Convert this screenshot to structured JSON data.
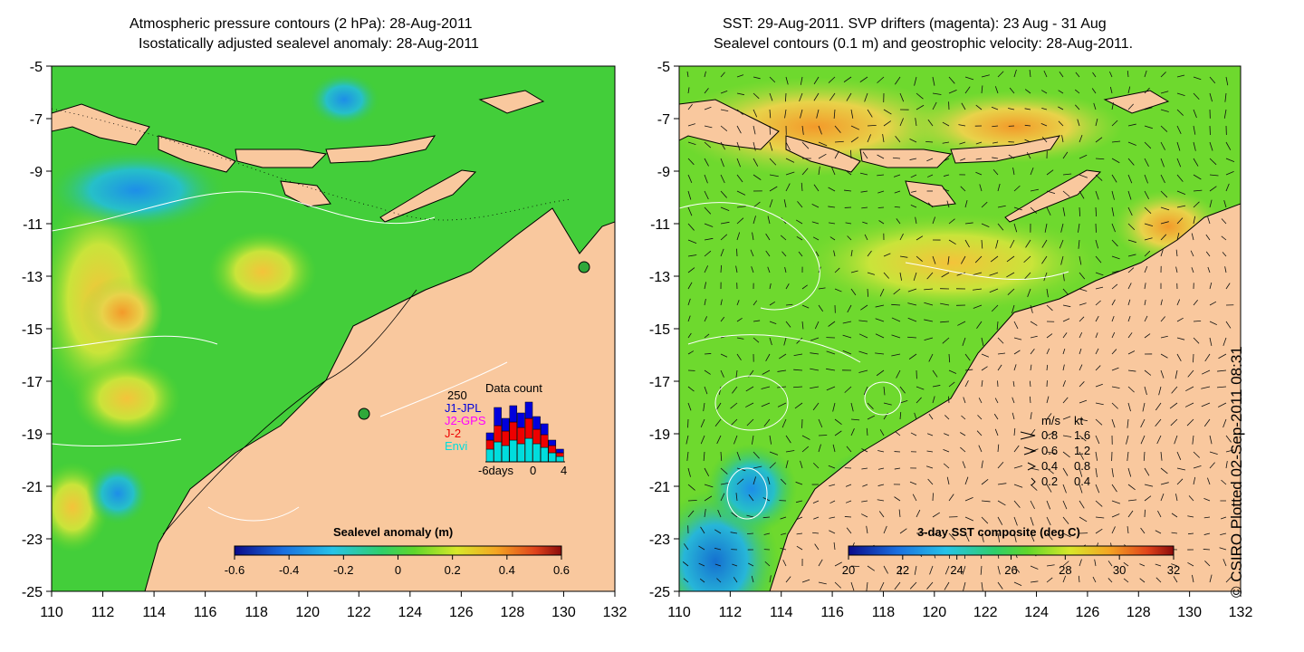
{
  "left": {
    "title_line1": "Atmospheric pressure contours (2 hPa): 28-Aug-2011",
    "title_line2": "Isostatically adjusted sealevel anomaly: 28-Aug-2011",
    "colorbar": {
      "title": "Sealevel anomaly (m)",
      "ticks": [
        "-0.6",
        "-0.4",
        "-0.2",
        "0",
        "0.2",
        "0.4",
        "0.6"
      ]
    },
    "data_count": {
      "title": "Data count",
      "max_label": "250",
      "series": [
        {
          "name": "J1-JPL",
          "color": "#0000dd"
        },
        {
          "name": "J2-GPS",
          "color": "#ff00ff"
        },
        {
          "name": "J-2",
          "color": "#ee0000"
        },
        {
          "name": "Envi",
          "color": "#00dddd"
        }
      ],
      "x_labels": [
        "-6days",
        "0",
        "4"
      ]
    }
  },
  "right": {
    "title_line1": "SST: 29-Aug-2011. SVP drifters (magenta): 23 Aug - 31 Aug",
    "title_line2": "Sealevel contours (0.1 m) and geostrophic velocity: 28-Aug-2011.",
    "colorbar": {
      "title": "3-day SST composite (deg C)",
      "ticks": [
        "20",
        "22",
        "24",
        "26",
        "28",
        "30",
        "32"
      ]
    },
    "speed_legend": {
      "header_ms": "m/s",
      "header_kt": "kt",
      "rows": [
        {
          "ms": "0.8",
          "kt": "1.6"
        },
        {
          "ms": "0.6",
          "kt": "1.2"
        },
        {
          "ms": "0.4",
          "kt": "0.8"
        },
        {
          "ms": "0.2",
          "kt": "0.4"
        }
      ]
    }
  },
  "axes": {
    "x_ticks": [
      "110",
      "112",
      "114",
      "116",
      "118",
      "120",
      "122",
      "124",
      "126",
      "128",
      "130",
      "132"
    ],
    "y_ticks": [
      "-5",
      "-7",
      "-9",
      "-11",
      "-13",
      "-15",
      "-17",
      "-19",
      "-21",
      "-23",
      "-25"
    ]
  },
  "credit": "© CSIRO Plotted 02-Sep-2011 08:31",
  "colors": {
    "land": "#f9c89e",
    "sea_base": "#3fcc3a",
    "contour": "#ffffff"
  }
}
